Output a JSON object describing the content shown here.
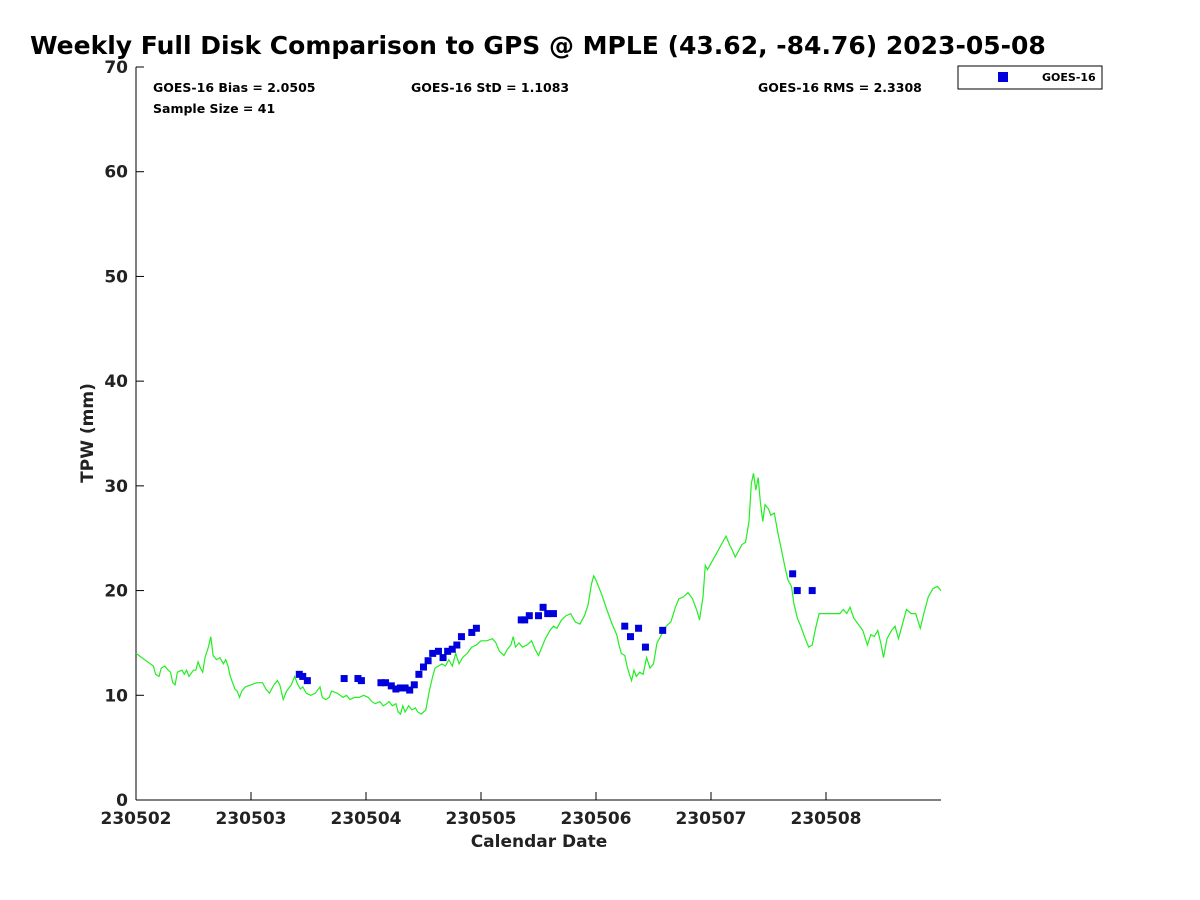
{
  "chart_data": {
    "type": "scatter",
    "title": "Weekly Full Disk Comparison to GPS @ MPLE (43.62, -84.76) 2023-05-08",
    "xlabel": "Calendar Date",
    "ylabel": "TPW (mm)",
    "xlim": [
      0,
      7
    ],
    "ylim": [
      0,
      70
    ],
    "x_ticks": [
      0,
      1,
      2,
      3,
      4,
      5,
      6
    ],
    "x_tick_labels": [
      "230502",
      "230503",
      "230504",
      "230505",
      "230506",
      "230507",
      "230508"
    ],
    "y_ticks": [
      0,
      10,
      20,
      30,
      40,
      50,
      60,
      70
    ],
    "stats": {
      "bias": "GOES-16 Bias = 2.0505",
      "std": "GOES-16 StD = 1.1083",
      "rms": "GOES-16 RMS = 2.3308",
      "sample": "Sample Size = 41"
    },
    "legend": {
      "position": "top-right",
      "label": "GOES-16"
    },
    "colors": {
      "goes": "#0000dd",
      "gps": "#22ee22"
    },
    "series": [
      {
        "name": "GOES-16",
        "style": "square-marker",
        "color": "#0000dd",
        "points": [
          [
            1.42,
            12.0
          ],
          [
            1.45,
            11.8
          ],
          [
            1.49,
            11.4
          ],
          [
            1.81,
            11.6
          ],
          [
            1.93,
            11.6
          ],
          [
            1.96,
            11.4
          ],
          [
            2.13,
            11.2
          ],
          [
            2.17,
            11.2
          ],
          [
            2.22,
            10.9
          ],
          [
            2.26,
            10.6
          ],
          [
            2.3,
            10.7
          ],
          [
            2.34,
            10.7
          ],
          [
            2.38,
            10.5
          ],
          [
            2.42,
            11.0
          ],
          [
            2.46,
            12.0
          ],
          [
            2.5,
            12.7
          ],
          [
            2.54,
            13.3
          ],
          [
            2.58,
            14.0
          ],
          [
            2.63,
            14.2
          ],
          [
            2.67,
            13.6
          ],
          [
            2.71,
            14.2
          ],
          [
            2.75,
            14.4
          ],
          [
            2.79,
            14.8
          ],
          [
            2.83,
            15.6
          ],
          [
            2.92,
            16.0
          ],
          [
            2.96,
            16.4
          ],
          [
            3.35,
            17.2
          ],
          [
            3.38,
            17.2
          ],
          [
            3.42,
            17.6
          ],
          [
            3.5,
            17.6
          ],
          [
            3.54,
            18.4
          ],
          [
            3.58,
            17.8
          ],
          [
            3.63,
            17.8
          ],
          [
            4.25,
            16.6
          ],
          [
            4.3,
            15.6
          ],
          [
            4.37,
            16.4
          ],
          [
            4.43,
            14.6
          ],
          [
            4.58,
            16.2
          ],
          [
            5.71,
            21.6
          ],
          [
            5.75,
            20.0
          ],
          [
            5.88,
            20.0
          ]
        ]
      },
      {
        "name": "GPS",
        "style": "line",
        "color": "#22ee22",
        "points": [
          [
            0.0,
            14.0
          ],
          [
            0.05,
            13.6
          ],
          [
            0.1,
            13.2
          ],
          [
            0.15,
            12.8
          ],
          [
            0.17,
            12.0
          ],
          [
            0.2,
            11.8
          ],
          [
            0.22,
            12.6
          ],
          [
            0.25,
            12.8
          ],
          [
            0.28,
            12.4
          ],
          [
            0.3,
            12.2
          ],
          [
            0.32,
            11.2
          ],
          [
            0.34,
            11.0
          ],
          [
            0.36,
            12.2
          ],
          [
            0.4,
            12.4
          ],
          [
            0.42,
            12.0
          ],
          [
            0.44,
            12.4
          ],
          [
            0.46,
            11.8
          ],
          [
            0.5,
            12.4
          ],
          [
            0.52,
            12.4
          ],
          [
            0.54,
            13.2
          ],
          [
            0.56,
            12.6
          ],
          [
            0.58,
            12.2
          ],
          [
            0.6,
            13.6
          ],
          [
            0.63,
            14.6
          ],
          [
            0.65,
            15.6
          ],
          [
            0.67,
            13.8
          ],
          [
            0.7,
            13.4
          ],
          [
            0.73,
            13.6
          ],
          [
            0.76,
            13.0
          ],
          [
            0.78,
            13.4
          ],
          [
            0.8,
            12.8
          ],
          [
            0.82,
            11.8
          ],
          [
            0.84,
            11.2
          ],
          [
            0.86,
            10.6
          ],
          [
            0.88,
            10.4
          ],
          [
            0.9,
            9.8
          ],
          [
            0.92,
            10.4
          ],
          [
            0.95,
            10.8
          ],
          [
            1.0,
            11.0
          ],
          [
            1.05,
            11.2
          ],
          [
            1.1,
            11.2
          ],
          [
            1.13,
            10.6
          ],
          [
            1.16,
            10.2
          ],
          [
            1.2,
            11.0
          ],
          [
            1.23,
            11.4
          ],
          [
            1.25,
            11.0
          ],
          [
            1.28,
            9.6
          ],
          [
            1.31,
            10.4
          ],
          [
            1.35,
            11.0
          ],
          [
            1.38,
            11.8
          ],
          [
            1.4,
            11.2
          ],
          [
            1.43,
            10.6
          ],
          [
            1.45,
            10.8
          ],
          [
            1.48,
            10.2
          ],
          [
            1.52,
            10.0
          ],
          [
            1.56,
            10.2
          ],
          [
            1.6,
            10.8
          ],
          [
            1.62,
            9.8
          ],
          [
            1.65,
            9.6
          ],
          [
            1.68,
            9.8
          ],
          [
            1.7,
            10.4
          ],
          [
            1.75,
            10.2
          ],
          [
            1.8,
            9.8
          ],
          [
            1.83,
            10.0
          ],
          [
            1.86,
            9.6
          ],
          [
            1.9,
            9.8
          ],
          [
            1.94,
            9.8
          ],
          [
            1.98,
            10.0
          ],
          [
            2.02,
            9.8
          ],
          [
            2.05,
            9.4
          ],
          [
            2.08,
            9.2
          ],
          [
            2.12,
            9.4
          ],
          [
            2.15,
            9.0
          ],
          [
            2.18,
            9.2
          ],
          [
            2.2,
            9.4
          ],
          [
            2.23,
            9.0
          ],
          [
            2.26,
            9.2
          ],
          [
            2.28,
            8.4
          ],
          [
            2.3,
            8.2
          ],
          [
            2.32,
            9.0
          ],
          [
            2.34,
            8.4
          ],
          [
            2.37,
            9.0
          ],
          [
            2.4,
            8.6
          ],
          [
            2.43,
            8.8
          ],
          [
            2.45,
            8.4
          ],
          [
            2.48,
            8.2
          ],
          [
            2.52,
            8.6
          ],
          [
            2.55,
            10.4
          ],
          [
            2.58,
            11.8
          ],
          [
            2.6,
            12.6
          ],
          [
            2.63,
            12.8
          ],
          [
            2.66,
            13.0
          ],
          [
            2.69,
            12.8
          ],
          [
            2.72,
            13.4
          ],
          [
            2.75,
            12.8
          ],
          [
            2.78,
            14.0
          ],
          [
            2.81,
            13.0
          ],
          [
            2.84,
            13.6
          ],
          [
            2.88,
            14.0
          ],
          [
            2.92,
            14.6
          ],
          [
            2.96,
            14.8
          ],
          [
            3.0,
            15.2
          ],
          [
            3.05,
            15.2
          ],
          [
            3.1,
            15.4
          ],
          [
            3.13,
            15.0
          ],
          [
            3.16,
            14.2
          ],
          [
            3.2,
            13.8
          ],
          [
            3.23,
            14.4
          ],
          [
            3.26,
            14.8
          ],
          [
            3.28,
            15.6
          ],
          [
            3.3,
            14.6
          ],
          [
            3.33,
            15.0
          ],
          [
            3.36,
            14.6
          ],
          [
            3.4,
            14.8
          ],
          [
            3.44,
            15.2
          ],
          [
            3.47,
            14.4
          ],
          [
            3.5,
            13.8
          ],
          [
            3.53,
            14.6
          ],
          [
            3.56,
            15.4
          ],
          [
            3.6,
            16.2
          ],
          [
            3.63,
            16.6
          ],
          [
            3.66,
            16.4
          ],
          [
            3.7,
            17.2
          ],
          [
            3.74,
            17.6
          ],
          [
            3.78,
            17.8
          ],
          [
            3.82,
            17.0
          ],
          [
            3.86,
            16.8
          ],
          [
            3.9,
            17.6
          ],
          [
            3.93,
            18.6
          ],
          [
            3.96,
            20.6
          ],
          [
            3.98,
            21.4
          ],
          [
            4.0,
            21.0
          ],
          [
            4.05,
            19.6
          ],
          [
            4.1,
            18.0
          ],
          [
            4.14,
            16.8
          ],
          [
            4.18,
            15.8
          ],
          [
            4.2,
            14.8
          ],
          [
            4.22,
            14.0
          ],
          [
            4.25,
            13.8
          ],
          [
            4.27,
            12.8
          ],
          [
            4.29,
            12.0
          ],
          [
            4.31,
            11.4
          ],
          [
            4.33,
            12.4
          ],
          [
            4.35,
            11.8
          ],
          [
            4.38,
            12.2
          ],
          [
            4.41,
            12.0
          ],
          [
            4.44,
            13.6
          ],
          [
            4.47,
            12.6
          ],
          [
            4.5,
            13.0
          ],
          [
            4.53,
            15.0
          ],
          [
            4.57,
            15.8
          ],
          [
            4.61,
            16.6
          ],
          [
            4.65,
            17.0
          ],
          [
            4.69,
            18.4
          ],
          [
            4.72,
            19.2
          ],
          [
            4.76,
            19.4
          ],
          [
            4.8,
            19.8
          ],
          [
            4.84,
            19.2
          ],
          [
            4.88,
            18.0
          ],
          [
            4.9,
            17.2
          ],
          [
            4.93,
            19.4
          ],
          [
            4.95,
            22.4
          ],
          [
            4.97,
            22.0
          ],
          [
            5.0,
            22.6
          ],
          [
            5.05,
            23.6
          ],
          [
            5.1,
            24.6
          ],
          [
            5.13,
            25.2
          ],
          [
            5.16,
            24.4
          ],
          [
            5.18,
            24.0
          ],
          [
            5.21,
            23.2
          ],
          [
            5.24,
            23.8
          ],
          [
            5.27,
            24.4
          ],
          [
            5.3,
            24.6
          ],
          [
            5.33,
            26.6
          ],
          [
            5.35,
            30.2
          ],
          [
            5.37,
            31.2
          ],
          [
            5.39,
            29.6
          ],
          [
            5.41,
            30.8
          ],
          [
            5.43,
            28.4
          ],
          [
            5.45,
            26.6
          ],
          [
            5.47,
            28.2
          ],
          [
            5.5,
            27.8
          ],
          [
            5.52,
            27.2
          ],
          [
            5.55,
            27.4
          ],
          [
            5.58,
            25.6
          ],
          [
            5.61,
            24.0
          ],
          [
            5.64,
            22.4
          ],
          [
            5.67,
            21.0
          ],
          [
            5.7,
            20.4
          ],
          [
            5.72,
            18.8
          ],
          [
            5.75,
            17.4
          ],
          [
            5.78,
            16.6
          ],
          [
            5.82,
            15.4
          ],
          [
            5.85,
            14.6
          ],
          [
            5.88,
            14.8
          ],
          [
            5.91,
            16.4
          ],
          [
            5.94,
            17.8
          ],
          [
            5.98,
            17.8
          ],
          [
            6.05,
            17.8
          ],
          [
            6.12,
            17.8
          ],
          [
            6.15,
            18.2
          ],
          [
            6.18,
            17.8
          ],
          [
            6.21,
            18.4
          ],
          [
            6.24,
            17.4
          ],
          [
            6.28,
            16.8
          ],
          [
            6.32,
            16.2
          ],
          [
            6.36,
            14.8
          ],
          [
            6.39,
            15.8
          ],
          [
            6.42,
            15.6
          ],
          [
            6.45,
            16.2
          ],
          [
            6.48,
            14.8
          ],
          [
            6.5,
            13.6
          ],
          [
            6.53,
            15.4
          ],
          [
            6.57,
            16.2
          ],
          [
            6.6,
            16.6
          ],
          [
            6.63,
            15.4
          ],
          [
            6.66,
            16.6
          ],
          [
            6.7,
            18.2
          ],
          [
            6.74,
            17.8
          ],
          [
            6.78,
            17.8
          ],
          [
            6.82,
            16.4
          ],
          [
            6.85,
            17.8
          ],
          [
            6.89,
            19.4
          ],
          [
            6.93,
            20.2
          ],
          [
            6.97,
            20.4
          ],
          [
            7.0,
            20.0
          ]
        ]
      }
    ]
  }
}
